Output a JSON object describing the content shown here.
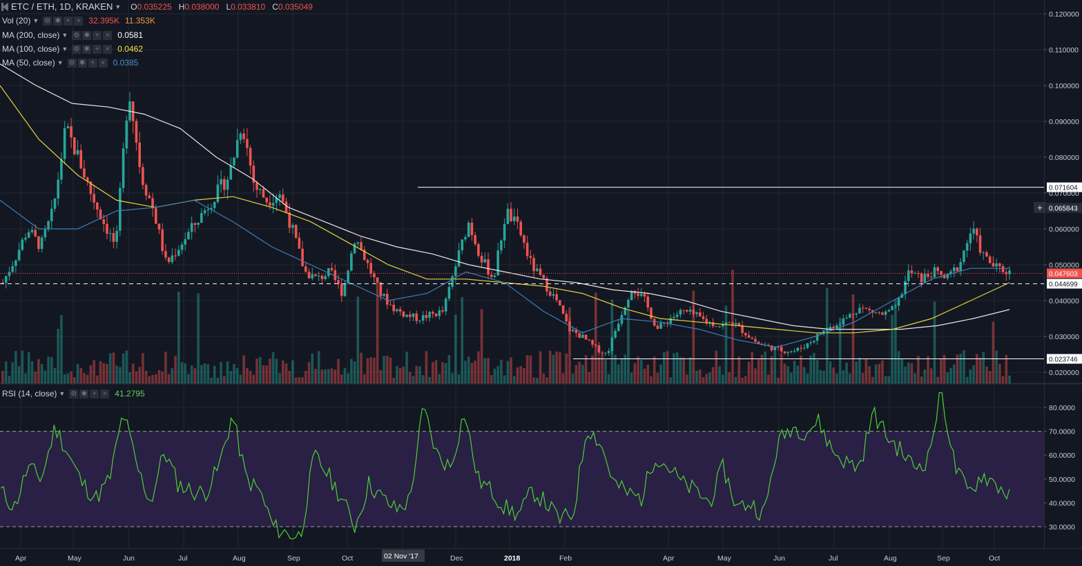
{
  "header": {
    "symbol": "ETC / ETH, 1D, KRAKEN",
    "ohlc": [
      {
        "k": "O",
        "v": "0.035225"
      },
      {
        "k": "H",
        "v": "0.038000"
      },
      {
        "k": "L",
        "v": "0.033810"
      },
      {
        "k": "C",
        "v": "0.035049"
      }
    ]
  },
  "indicators": [
    {
      "label": "Vol (20)",
      "v1": "32.395K",
      "v2": "11.353K",
      "v1_color": "#ef5350",
      "v2_color": "#ef9a3a"
    },
    {
      "label": "MA (200, close)",
      "v1": "0.0581",
      "v1_color": "#ffffff"
    },
    {
      "label": "MA (100, close)",
      "v1": "0.0462",
      "v1_color": "#f0e442"
    },
    {
      "label": "MA (50, close)",
      "v1": "0.0385",
      "v1_color": "#4a90c2"
    }
  ],
  "rsi_legend": {
    "label": "RSI (14, close)",
    "v1": "41.2795",
    "v1_color": "#5fd35f"
  },
  "colors": {
    "background": "#131722",
    "grid": "#232733",
    "up": "#26a69a",
    "down": "#ef5350",
    "ma200": "#e8e8e8",
    "ma100": "#e5d43b",
    "ma50": "#3f7fb5",
    "rsi": "#4cd137",
    "rsi_band": "#2a1f45"
  },
  "chart_data": [
    {
      "type": "candlestick",
      "title": "ETC / ETH, 1D, KRAKEN",
      "x_ticks": [
        "Apr",
        "May",
        "Jun",
        "Jul",
        "Aug",
        "Sep",
        "Oct",
        "02 Nov '17",
        "Dec",
        "2018",
        "Feb",
        "Apr",
        "May",
        "Jun",
        "Jul",
        "Aug",
        "Sep",
        "Oct"
      ],
      "y_ticks": [
        "0.120000",
        "0.110000",
        "0.100000",
        "0.090000",
        "0.080000",
        "0.070000",
        "0.060000",
        "0.050000",
        "0.040000",
        "0.030000",
        "0.020000"
      ],
      "ylim": [
        0.018,
        0.1215
      ],
      "close_series": [
        0.045,
        0.052,
        0.06,
        0.055,
        0.065,
        0.088,
        0.08,
        0.07,
        0.062,
        0.055,
        0.1,
        0.075,
        0.065,
        0.05,
        0.055,
        0.06,
        0.065,
        0.07,
        0.075,
        0.09,
        0.072,
        0.068,
        0.07,
        0.06,
        0.048,
        0.046,
        0.048,
        0.042,
        0.058,
        0.05,
        0.042,
        0.038,
        0.036,
        0.035,
        0.036,
        0.037,
        0.05,
        0.062,
        0.052,
        0.046,
        0.065,
        0.06,
        0.05,
        0.045,
        0.04,
        0.032,
        0.03,
        0.027,
        0.025,
        0.035,
        0.044,
        0.04,
        0.032,
        0.035,
        0.037,
        0.036,
        0.034,
        0.033,
        0.034,
        0.031,
        0.028,
        0.027,
        0.026,
        0.026,
        0.028,
        0.031,
        0.033,
        0.035,
        0.038,
        0.037,
        0.036,
        0.038,
        0.048,
        0.046,
        0.048,
        0.046,
        0.05,
        0.06,
        0.052,
        0.049,
        0.048
      ],
      "ma200": [
        0.106,
        0.1,
        0.095,
        0.094,
        0.092,
        0.088,
        0.08,
        0.074,
        0.066,
        0.062,
        0.058,
        0.055,
        0.053,
        0.05,
        0.048,
        0.046,
        0.045,
        0.043,
        0.042,
        0.04,
        0.037,
        0.035,
        0.033,
        0.032,
        0.032,
        0.032,
        0.033,
        0.035,
        0.0375
      ],
      "ma100": [
        0.1,
        0.085,
        0.075,
        0.068,
        0.066,
        0.068,
        0.069,
        0.066,
        0.062,
        0.056,
        0.05,
        0.046,
        0.046,
        0.045,
        0.044,
        0.042,
        0.038,
        0.035,
        0.034,
        0.033,
        0.032,
        0.031,
        0.031,
        0.032,
        0.035,
        0.04,
        0.045
      ],
      "ma50": [
        0.068,
        0.06,
        0.06,
        0.065,
        0.066,
        0.068,
        0.062,
        0.055,
        0.05,
        0.045,
        0.04,
        0.042,
        0.048,
        0.045,
        0.037,
        0.031,
        0.035,
        0.034,
        0.032,
        0.029,
        0.027,
        0.03,
        0.034,
        0.04,
        0.046,
        0.049,
        0.049
      ],
      "horizontal_levels": [
        {
          "value": 0.071604,
          "label": "0.071604",
          "style": "solid",
          "color": "#ffffff"
        },
        {
          "value": 0.065843,
          "label": "0.065843",
          "style": "crosshair",
          "color": "#2a2e39"
        },
        {
          "value": 0.047603,
          "label": "0.047603",
          "style": "dotted",
          "color": "#ef5350"
        },
        {
          "value": 0.044699,
          "label": "0.044699",
          "style": "dashed",
          "color": "#ffffff"
        },
        {
          "value": 0.023746,
          "label": "0.023746",
          "style": "solid",
          "color": "#ffffff"
        }
      ]
    },
    {
      "type": "line",
      "title": "RSI (14, close)",
      "y_ticks": [
        "80.0000",
        "70.0000",
        "60.0000",
        "50.0000",
        "40.0000",
        "30.0000"
      ],
      "ylim": [
        22,
        89
      ],
      "band": [
        30,
        70
      ],
      "values": [
        45,
        38,
        55,
        50,
        72,
        60,
        48,
        42,
        50,
        78,
        55,
        40,
        62,
        48,
        45,
        44,
        55,
        77,
        50,
        45,
        30,
        27,
        26,
        60,
        52,
        42,
        30,
        48,
        42,
        37,
        41,
        80,
        60,
        55,
        78,
        50,
        45,
        38,
        35,
        45,
        40,
        33,
        35,
        72,
        65,
        48,
        44,
        42,
        60,
        55,
        48,
        45,
        40,
        55,
        38,
        40,
        35,
        65,
        72,
        70,
        74,
        62,
        57,
        55,
        78,
        68,
        62,
        55,
        58,
        87,
        55,
        44,
        52,
        48,
        43
      ]
    }
  ]
}
